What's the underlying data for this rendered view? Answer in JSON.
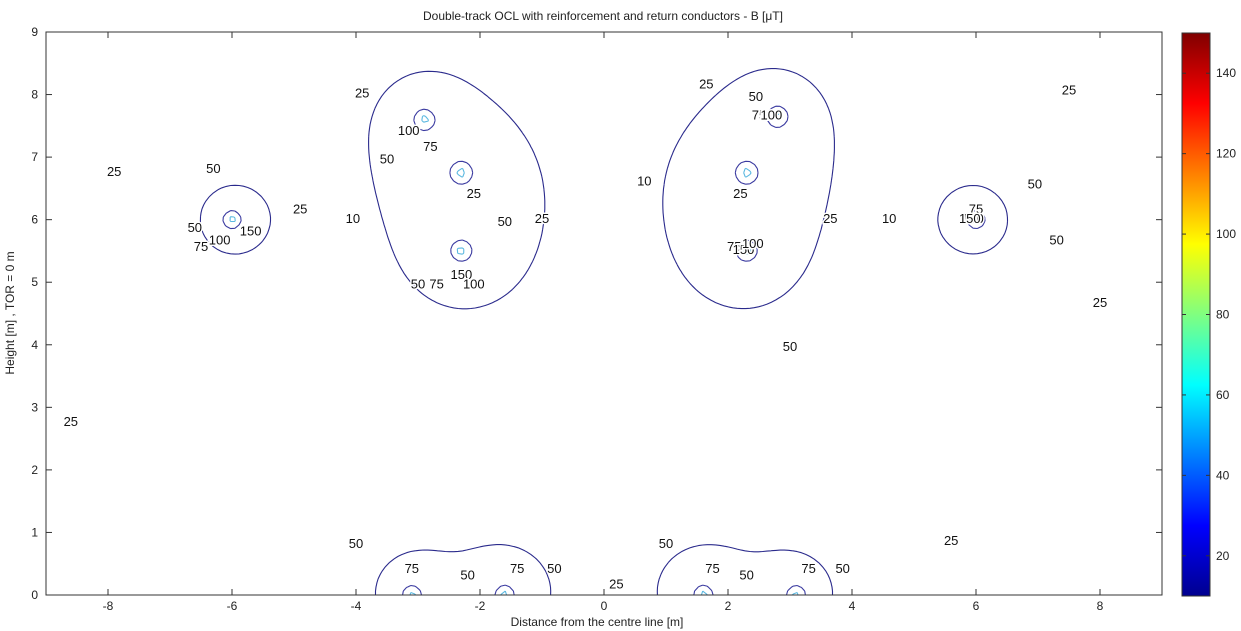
{
  "chart_data": {
    "type": "contour",
    "title": "Double-track OCL with reinforcement and return conductors - B [μT]",
    "xlabel": "Distance from the centre line [m]",
    "ylabel": "Height [m] , TOR = 0 m",
    "xlim": [
      -9,
      9
    ],
    "ylim": [
      0,
      9
    ],
    "xticks": [
      "-8",
      "-6",
      "-4",
      "-2",
      "0",
      "2",
      "4",
      "6",
      "8"
    ],
    "yticks": [
      "0",
      "1",
      "2",
      "3",
      "4",
      "5",
      "6",
      "7",
      "8",
      "9"
    ],
    "grid": false,
    "levels": [
      10,
      25,
      50,
      75,
      100,
      150
    ],
    "level_colors": {
      "10": "#2a2a8c",
      "25": "#3a3aa0",
      "50": "#5bb8e0",
      "75": "#4fae6a",
      "100": "#f2c230",
      "150": "#8b1a1a"
    },
    "sources": [
      {
        "x": -6.0,
        "y": 6.0
      },
      {
        "x": 6.0,
        "y": 6.0
      },
      {
        "x": -2.9,
        "y": 7.6
      },
      {
        "x": -2.3,
        "y": 6.75
      },
      {
        "x": 2.8,
        "y": 7.65
      },
      {
        "x": 2.3,
        "y": 6.75
      },
      {
        "x": -2.3,
        "y": 5.5
      },
      {
        "x": 2.3,
        "y": 5.5
      },
      {
        "x": -3.1,
        "y": 0.0
      },
      {
        "x": -1.6,
        "y": 0.0
      },
      {
        "x": 1.6,
        "y": 0.0
      },
      {
        "x": 3.1,
        "y": 0.0
      }
    ],
    "contour_labels": [
      {
        "x": -7.9,
        "y": 6.7,
        "text": "25"
      },
      {
        "x": -6.6,
        "y": 5.8,
        "text": "50"
      },
      {
        "x": -6.3,
        "y": 6.75,
        "text": "50"
      },
      {
        "x": -6.5,
        "y": 5.5,
        "text": "75"
      },
      {
        "x": -6.2,
        "y": 5.6,
        "text": "100"
      },
      {
        "x": -5.7,
        "y": 5.75,
        "text": "150"
      },
      {
        "x": -4.9,
        "y": 6.1,
        "text": "25"
      },
      {
        "x": -4.05,
        "y": 5.95,
        "text": "10"
      },
      {
        "x": -3.9,
        "y": 7.95,
        "text": "25"
      },
      {
        "x": -3.15,
        "y": 7.35,
        "text": "100"
      },
      {
        "x": -3.5,
        "y": 6.9,
        "text": "50"
      },
      {
        "x": -2.8,
        "y": 7.1,
        "text": "75"
      },
      {
        "x": -2.1,
        "y": 6.35,
        "text": "25"
      },
      {
        "x": -2.3,
        "y": 5.05,
        "text": "150"
      },
      {
        "x": -2.1,
        "y": 4.9,
        "text": "100"
      },
      {
        "x": -2.7,
        "y": 4.9,
        "text": "75"
      },
      {
        "x": -3.0,
        "y": 4.9,
        "text": "50"
      },
      {
        "x": -1.6,
        "y": 5.9,
        "text": "50"
      },
      {
        "x": 0.65,
        "y": 6.55,
        "text": "10"
      },
      {
        "x": -1.0,
        "y": 5.95,
        "text": "25"
      },
      {
        "x": 1.65,
        "y": 8.1,
        "text": "25"
      },
      {
        "x": 2.45,
        "y": 7.9,
        "text": "50"
      },
      {
        "x": 2.5,
        "y": 7.6,
        "text": "75"
      },
      {
        "x": 2.7,
        "y": 7.6,
        "text": "100"
      },
      {
        "x": 2.2,
        "y": 6.35,
        "text": "25"
      },
      {
        "x": 2.1,
        "y": 5.5,
        "text": "75"
      },
      {
        "x": 2.25,
        "y": 5.45,
        "text": "150"
      },
      {
        "x": 2.4,
        "y": 5.55,
        "text": "100"
      },
      {
        "x": 3.0,
        "y": 3.9,
        "text": "50"
      },
      {
        "x": 3.65,
        "y": 5.95,
        "text": "25"
      },
      {
        "x": 4.6,
        "y": 5.95,
        "text": "10"
      },
      {
        "x": 6.0,
        "y": 6.1,
        "text": "75"
      },
      {
        "x": 5.95,
        "y": 5.95,
        "text": "100"
      },
      {
        "x": 5.9,
        "y": 5.95,
        "text": "150"
      },
      {
        "x": 6.95,
        "y": 6.5,
        "text": "50"
      },
      {
        "x": 7.3,
        "y": 5.6,
        "text": "50"
      },
      {
        "x": 7.5,
        "y": 8.0,
        "text": "25"
      },
      {
        "x": 8.0,
        "y": 4.6,
        "text": "25"
      },
      {
        "x": -8.6,
        "y": 2.7,
        "text": "25"
      },
      {
        "x": -4.0,
        "y": 0.75,
        "text": "50"
      },
      {
        "x": -3.1,
        "y": 0.35,
        "text": "75"
      },
      {
        "x": -2.2,
        "y": 0.25,
        "text": "50"
      },
      {
        "x": -1.4,
        "y": 0.35,
        "text": "75"
      },
      {
        "x": -0.8,
        "y": 0.35,
        "text": "50"
      },
      {
        "x": 0.2,
        "y": 0.1,
        "text": "25"
      },
      {
        "x": 1.0,
        "y": 0.75,
        "text": "50"
      },
      {
        "x": 1.75,
        "y": 0.35,
        "text": "75"
      },
      {
        "x": 2.3,
        "y": 0.25,
        "text": "50"
      },
      {
        "x": 3.3,
        "y": 0.35,
        "text": "75"
      },
      {
        "x": 3.85,
        "y": 0.35,
        "text": "50"
      },
      {
        "x": 5.6,
        "y": 0.8,
        "text": "25"
      }
    ]
  },
  "colorbar": {
    "min": 10,
    "max": 150,
    "ticks": [
      "20",
      "40",
      "60",
      "80",
      "100",
      "120",
      "140"
    ],
    "colormap": [
      "#00008f",
      "#0000ff",
      "#0080ff",
      "#00ffff",
      "#80ff80",
      "#ffff00",
      "#ff8000",
      "#ff0000",
      "#800000"
    ]
  }
}
